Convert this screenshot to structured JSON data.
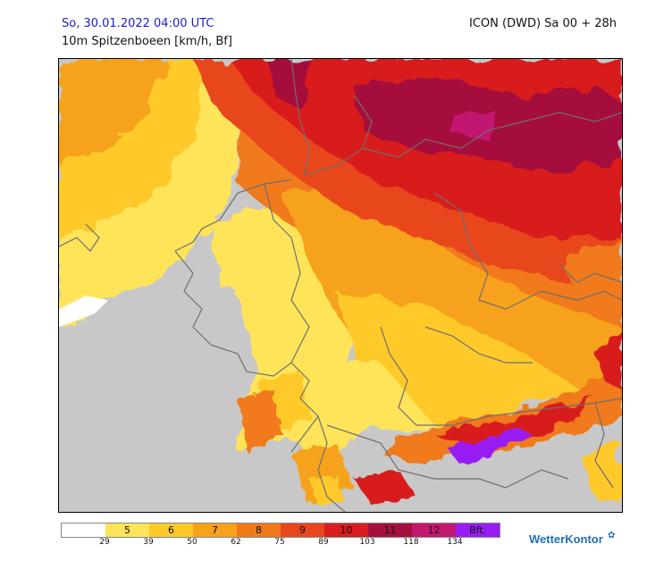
{
  "header": {
    "date": "So, 30.01.2022 04:00 UTC",
    "variable": "10m Spitzenboeen [km/h, Bf]",
    "model": "ICON (DWD) Sa 00 + 28h"
  },
  "map": {
    "region": "Central Europe / Germany",
    "land_no_data_color": "#c8c8c8",
    "border_color": "#6f6f6f"
  },
  "legend": {
    "segments": [
      {
        "label": "",
        "color": "#ffffff"
      },
      {
        "label": "5",
        "color": "#ffe45a"
      },
      {
        "label": "6",
        "color": "#ffc92a"
      },
      {
        "label": "7",
        "color": "#f7a21b"
      },
      {
        "label": "8",
        "color": "#f07a1a"
      },
      {
        "label": "9",
        "color": "#e8461c"
      },
      {
        "label": "10",
        "color": "#d81e1e"
      },
      {
        "label": "11",
        "color": "#a5103d"
      },
      {
        "label": "12",
        "color": "#c3186f"
      },
      {
        "label": "Bft.",
        "color": "#9a1cf5"
      }
    ],
    "ticks": [
      "29",
      "39",
      "50",
      "62",
      "75",
      "89",
      "103",
      "118",
      "134"
    ]
  },
  "brand": {
    "name": "WetterKontor",
    "icon": "swirl-icon"
  }
}
